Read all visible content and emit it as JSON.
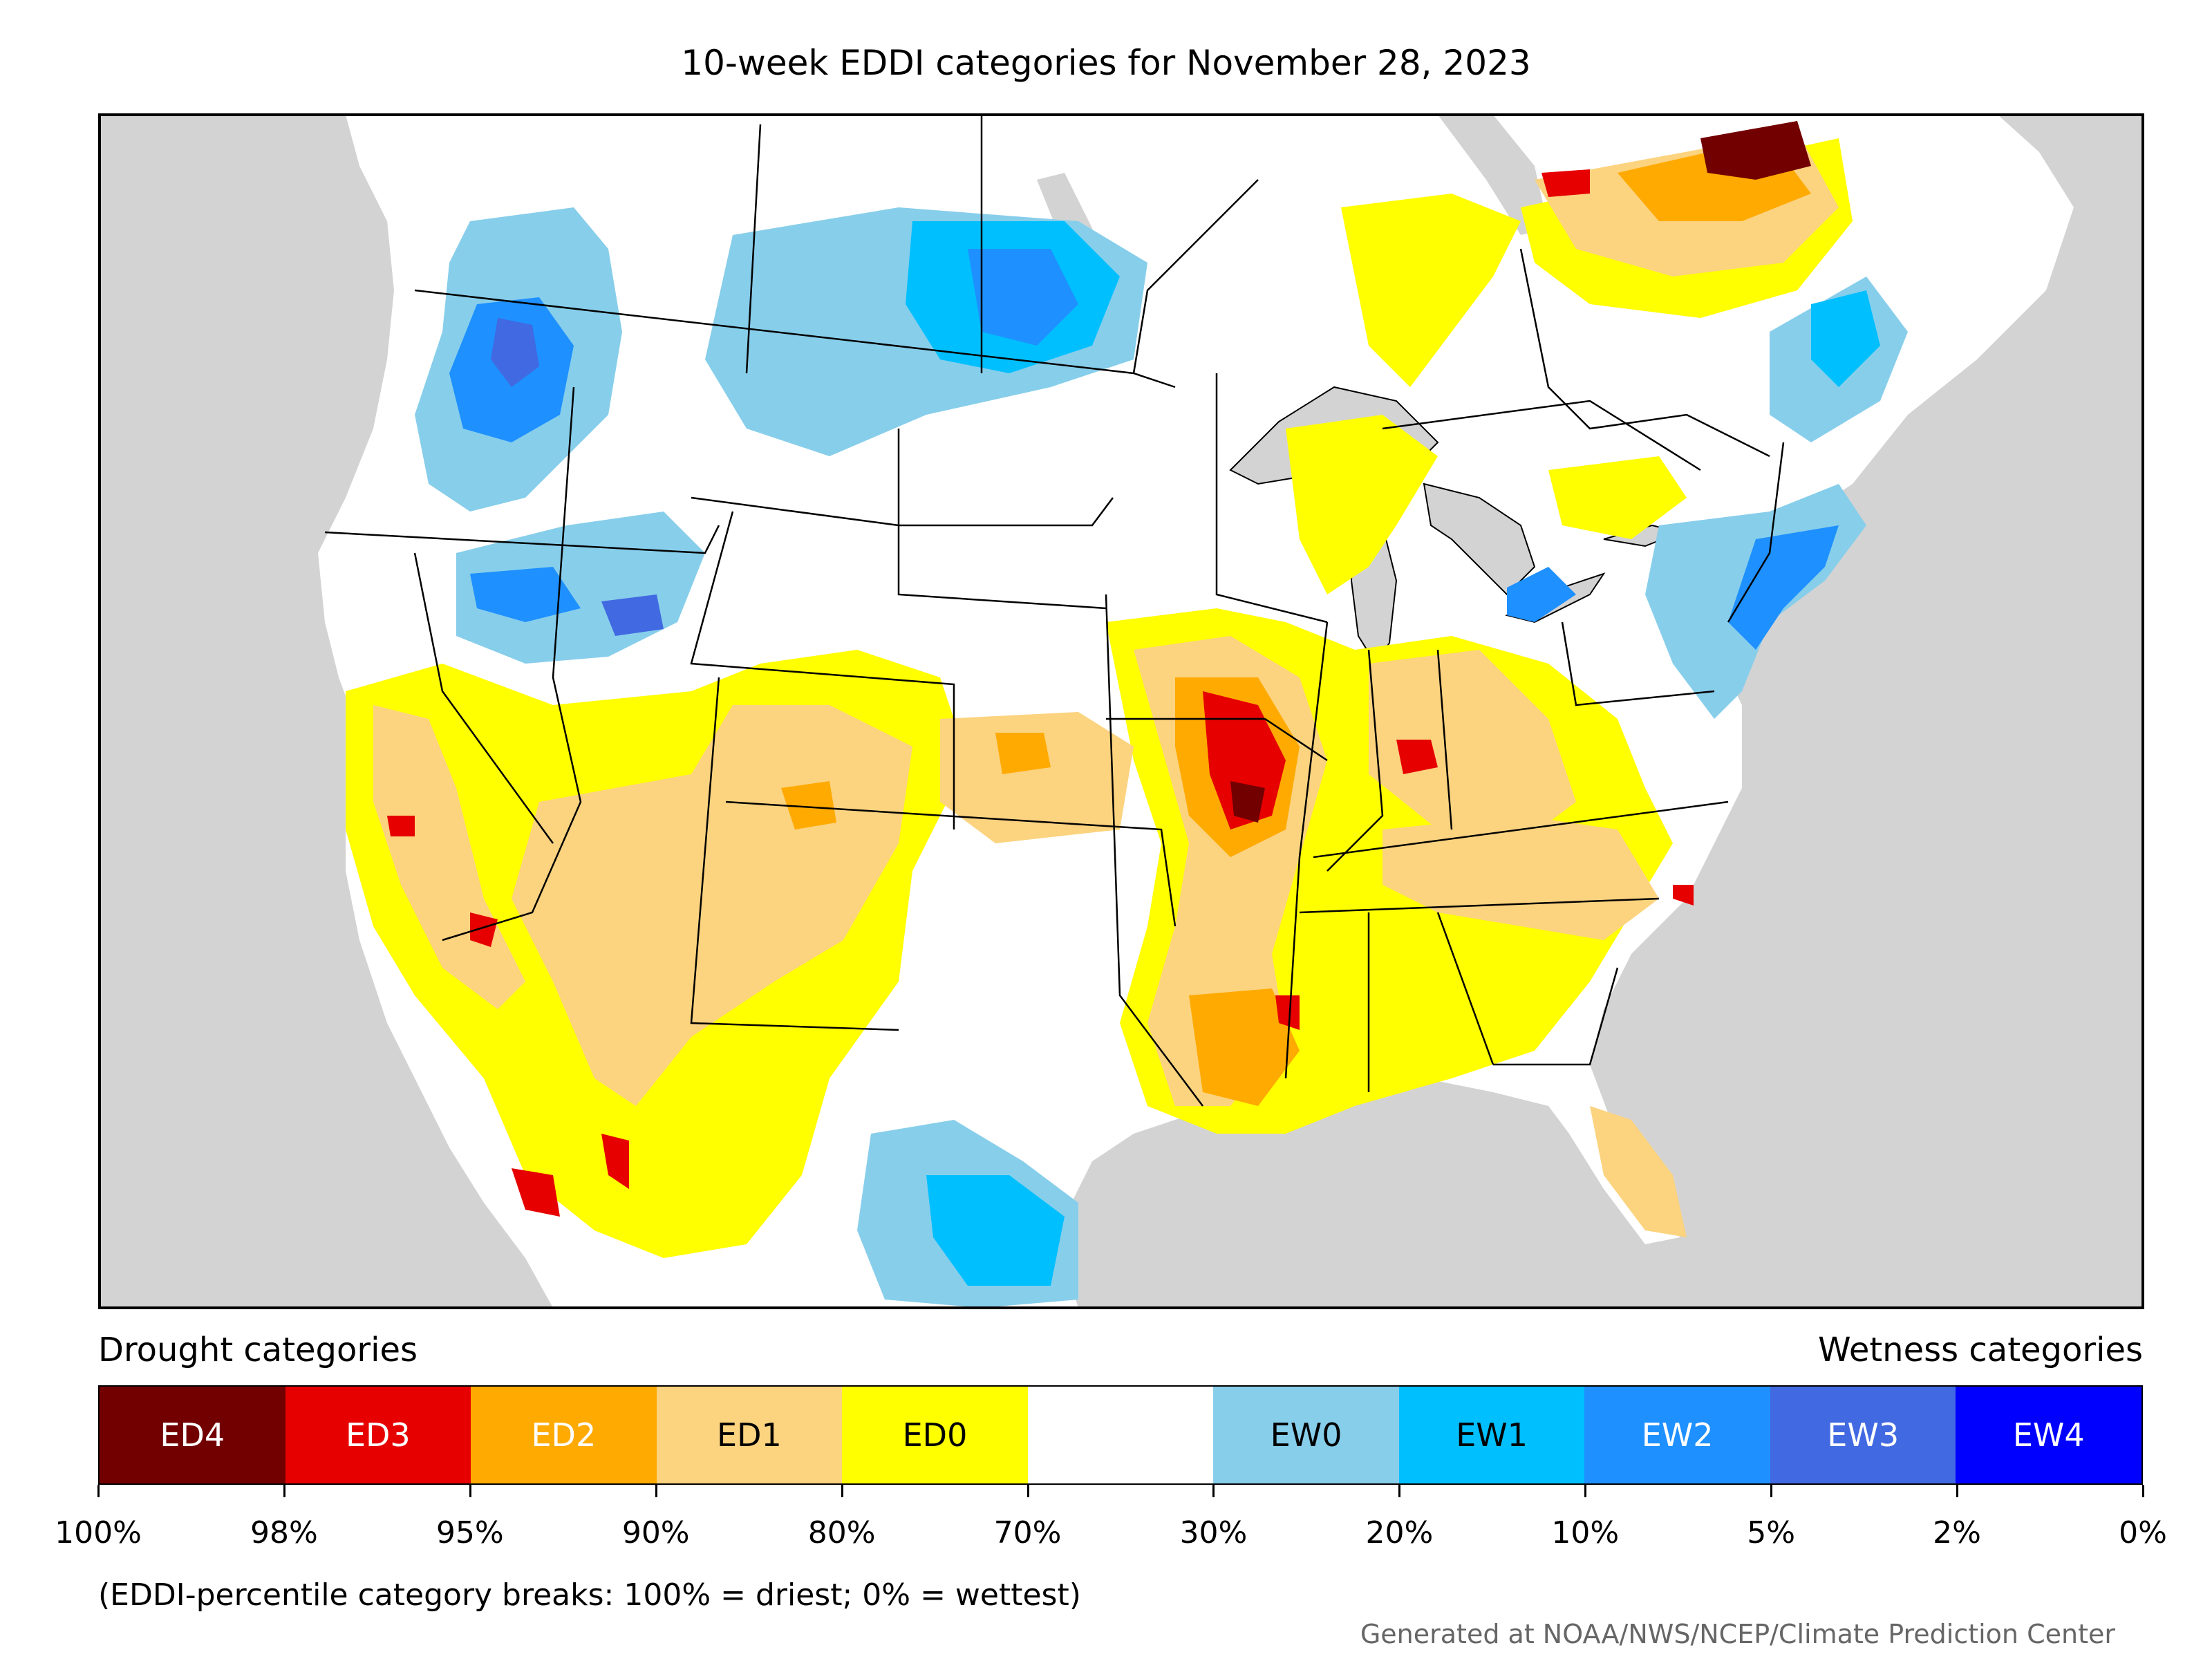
{
  "title": "10-week EDDI categories for November 28, 2023",
  "map": {
    "ocean_color": "#d3d3d3",
    "land_color": "#ffffff",
    "region": "Contiguous United States with southern Canada and northern Mexico"
  },
  "legend": {
    "drought_label": "Drought categories",
    "wetness_label": "Wetness categories",
    "categories": [
      {
        "label": "ED4",
        "color": "#730000",
        "text_color": "#ffffff"
      },
      {
        "label": "ED3",
        "color": "#e60000",
        "text_color": "#ffffff"
      },
      {
        "label": "ED2",
        "color": "#ffaa00",
        "text_color": "#ffffff"
      },
      {
        "label": "ED1",
        "color": "#fcd37f",
        "text_color": "#000000"
      },
      {
        "label": "ED0",
        "color": "#ffff00",
        "text_color": "#000000"
      },
      {
        "label": "",
        "color": "#ffffff",
        "text_color": "#000000"
      },
      {
        "label": "EW0",
        "color": "#87ceeb",
        "text_color": "#000000"
      },
      {
        "label": "EW1",
        "color": "#00bfff",
        "text_color": "#000000"
      },
      {
        "label": "EW2",
        "color": "#1e90ff",
        "text_color": "#ffffff"
      },
      {
        "label": "EW3",
        "color": "#4169e1",
        "text_color": "#ffffff"
      },
      {
        "label": "EW4",
        "color": "#0000ff",
        "text_color": "#ffffff"
      }
    ],
    "tick_labels": [
      "100%",
      "98%",
      "95%",
      "90%",
      "80%",
      "70%",
      "30%",
      "20%",
      "10%",
      "5%",
      "2%",
      "0%"
    ]
  },
  "note": "(EDDI-percentile category breaks: 100% = driest; 0% = wettest)",
  "credit": "Generated at NOAA/NWS/NCEP/Climate Prediction Center"
}
